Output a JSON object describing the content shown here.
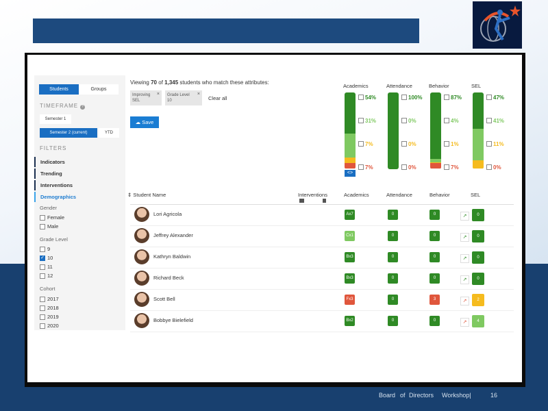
{
  "footer": {
    "board": "Board",
    "of": "of",
    "directors": "Directors",
    "workshop": "Workshop|",
    "page": "16"
  },
  "sidebar": {
    "tabs": [
      "Students",
      "Groups"
    ],
    "timeframe_title": "TIMEFRAME",
    "semester1": "Semester 1",
    "semester2": "Semester 2 (current)",
    "ytd": "YTD",
    "filters_title": "FILTERS",
    "nav": [
      "Indicators",
      "Trending",
      "Interventions",
      "Demographics"
    ],
    "gender_label": "Gender",
    "gender": [
      "Female",
      "Male"
    ],
    "grade_label": "Grade Level",
    "grades": [
      {
        "label": "9",
        "checked": false
      },
      {
        "label": "10",
        "checked": true
      },
      {
        "label": "11",
        "checked": false
      },
      {
        "label": "12",
        "checked": false
      }
    ],
    "cohort_label": "Cohort",
    "cohorts": [
      "2017",
      "2018",
      "2019",
      "2020"
    ]
  },
  "header": {
    "viewing_prefix": "Viewing",
    "viewing_count": "70",
    "viewing_of": "of",
    "viewing_total": "1,345",
    "viewing_suffix": "students who match these attributes:",
    "chips": [
      {
        "line1": "Improving",
        "line2": "SEL"
      },
      {
        "line1": "Grade Level",
        "line2": "10"
      }
    ],
    "clear_all": "Clear all",
    "save": "Save"
  },
  "summary": [
    {
      "name": "Academics",
      "values": [
        {
          "pct": 54,
          "label": "54%",
          "color": "#2f8a25"
        },
        {
          "pct": 31,
          "label": "31%",
          "color": "#7fc961"
        },
        {
          "pct": 7,
          "label": "7%",
          "color": "#f5bb1e"
        },
        {
          "pct": 7,
          "label": "7%",
          "color": "#e0563c"
        }
      ]
    },
    {
      "name": "Attendance",
      "values": [
        {
          "pct": 100,
          "label": "100%",
          "color": "#2f8a25"
        },
        {
          "pct": 0,
          "label": "0%",
          "color": "#7fc961"
        },
        {
          "pct": 0,
          "label": "0%",
          "color": "#f5bb1e"
        },
        {
          "pct": 0,
          "label": "0%",
          "color": "#e0563c"
        }
      ]
    },
    {
      "name": "Behavior",
      "values": [
        {
          "pct": 87,
          "label": "87%",
          "color": "#2f8a25"
        },
        {
          "pct": 4,
          "label": "4%",
          "color": "#7fc961"
        },
        {
          "pct": 1,
          "label": "1%",
          "color": "#f5bb1e"
        },
        {
          "pct": 7,
          "label": "7%",
          "color": "#e0563c"
        }
      ]
    },
    {
      "name": "SEL",
      "values": [
        {
          "pct": 47,
          "label": "47%",
          "color": "#2f8a25"
        },
        {
          "pct": 41,
          "label": "41%",
          "color": "#7fc961"
        },
        {
          "pct": 11,
          "label": "11%",
          "color": "#f5bb1e"
        },
        {
          "pct": 0,
          "label": "0%",
          "color": "#e0563c"
        }
      ]
    }
  ],
  "table": {
    "headers": [
      "Student Name",
      "Interventions",
      "Academics",
      "Attendance",
      "Behavior",
      "SEL"
    ],
    "rows": [
      {
        "name": "Lori Agricola",
        "academics": "Ax7",
        "academics_color": "#2f8a25",
        "attendance": "0",
        "behavior": "0",
        "behavior_color": "#2f8a25",
        "sel": "0",
        "sel_color": "#2f8a25"
      },
      {
        "name": "Jeffrey Alexander",
        "academics": "Cx1",
        "academics_color": "#7fc961",
        "attendance": "0",
        "behavior": "0",
        "behavior_color": "#2f8a25",
        "sel": "0",
        "sel_color": "#2f8a25"
      },
      {
        "name": "Kathryn Baldwin",
        "academics": "Bx3",
        "academics_color": "#2f8a25",
        "attendance": "0",
        "behavior": "0",
        "behavior_color": "#2f8a25",
        "sel": "0",
        "sel_color": "#2f8a25"
      },
      {
        "name": "Richard Beck",
        "academics": "Bx3",
        "academics_color": "#2f8a25",
        "attendance": "0",
        "behavior": "0",
        "behavior_color": "#2f8a25",
        "sel": "0",
        "sel_color": "#2f8a25"
      },
      {
        "name": "Scott Bell",
        "academics": "Fx3",
        "academics_color": "#e0563c",
        "attendance": "0",
        "behavior": "3",
        "behavior_color": "#e0563c",
        "sel": "2",
        "sel_color": "#f5bb1e"
      },
      {
        "name": "Bobbye Bielefield",
        "academics": "Bx2",
        "academics_color": "#2f8a25",
        "attendance": "0",
        "behavior": "0",
        "behavior_color": "#2f8a25",
        "sel": "4",
        "sel_color": "#7fc961"
      }
    ]
  }
}
